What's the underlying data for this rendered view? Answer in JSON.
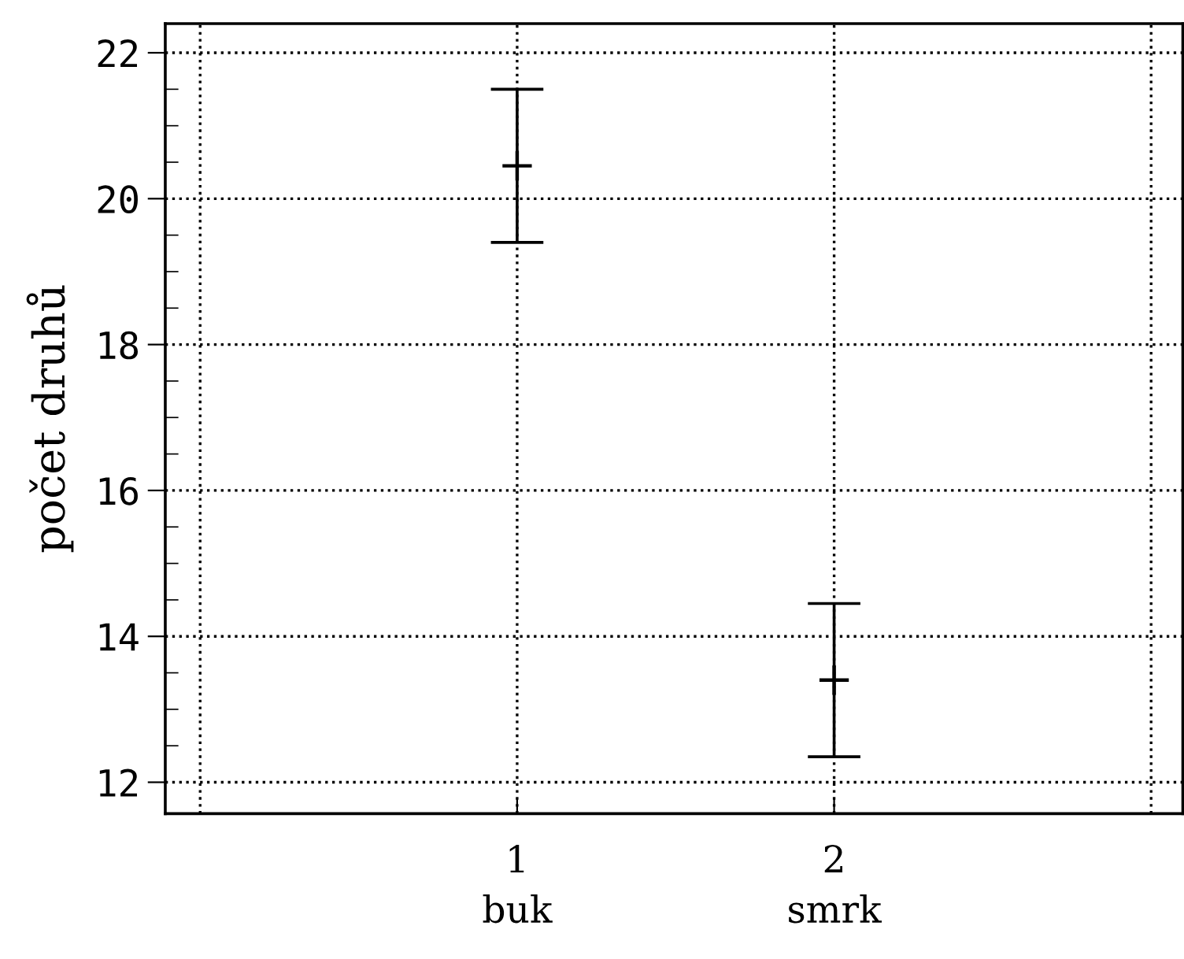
{
  "chart_data": {
    "type": "scatter",
    "ylabel": "počet druhů",
    "x": [
      1,
      2
    ],
    "values": [
      20.45,
      13.4
    ],
    "errors": [
      1.05,
      1.05
    ],
    "colors": [
      "#000000",
      "#000000"
    ],
    "xlim": [
      -0.11,
      3.1
    ],
    "xticks": [
      {
        "value": 0,
        "label": null
      },
      {
        "value": 1,
        "label": "1\nbuk"
      },
      {
        "value": 2,
        "label": "2\nsmrk"
      },
      {
        "value": 3,
        "label": null
      }
    ],
    "ylim": [
      11.57,
      22.4
    ],
    "yticks": [
      12,
      {
        "value": 12.5,
        "label": null
      },
      {
        "value": 13,
        "label": null
      },
      {
        "value": 13.5,
        "label": null
      },
      14,
      {
        "value": 14.5,
        "label": null
      },
      {
        "value": 15,
        "label": null
      },
      {
        "value": 15.5,
        "label": null
      },
      16,
      {
        "value": 16.5,
        "label": null
      },
      {
        "value": 17,
        "label": null
      },
      {
        "value": 17.5,
        "label": null
      },
      18,
      {
        "value": 18.5,
        "label": null
      },
      {
        "value": 19,
        "label": null
      },
      {
        "value": 19.5,
        "label": null
      },
      20,
      {
        "value": 20.5,
        "label": null
      },
      {
        "value": 21,
        "label": null
      },
      {
        "value": 21.5,
        "label": null
      },
      22
    ],
    "grid": true,
    "marker": "cross"
  }
}
